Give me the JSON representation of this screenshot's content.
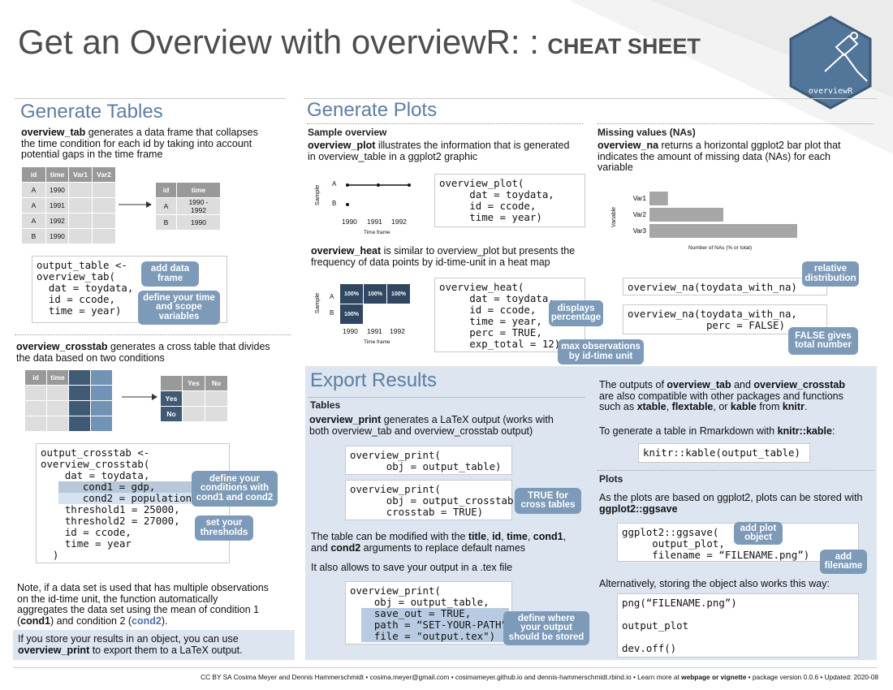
{
  "title": {
    "main": "Get an Overview with overviewR: :",
    "suffix": "CHEAT SHEET"
  },
  "logo": {
    "text": "overviewR"
  },
  "generate_tables": {
    "heading": "Generate Tables",
    "tab_fn": "overview_tab",
    "tab_desc": " generates a data frame that collapses the time condition for each id by taking into account potential gaps in the time frame",
    "tab_table_in": {
      "headers": [
        "id",
        "time",
        "Var1",
        "Var2"
      ],
      "rows": [
        [
          "A",
          "1990"
        ],
        [
          "A",
          "1991"
        ],
        [
          "A",
          "1992"
        ],
        [
          "B",
          "1990"
        ]
      ]
    },
    "tab_table_out": {
      "headers": [
        "id",
        "time"
      ],
      "rows": [
        [
          "A",
          "1990 - 1992"
        ],
        [
          "B",
          "1990"
        ]
      ]
    },
    "tab_code": [
      "output_table <-",
      "overview_tab(",
      "  dat = toydata,",
      "  id = ccode,",
      "  time = year)"
    ],
    "tag_add_data_frame": "add data frame",
    "tag_define_time": "define your time and scope variables",
    "crosstab_fn": "overview_crosstab",
    "crosstab_desc": " generates a cross table that divides the data based on two conditions",
    "crosstab_in_headers": [
      "id",
      "time"
    ],
    "crosstab_out": {
      "col_headers": [
        "Yes",
        "No"
      ],
      "row_headers": [
        "Yes",
        "No"
      ]
    },
    "crosstab_code": [
      "output_crosstab <-",
      "overview_crosstab(",
      "    dat = toydata,",
      "    cond1 = gdp,",
      "    cond2 = population,",
      "    threshold1 = 25000,",
      "    threshold2 = 27000,",
      "    id = ccode,",
      "    time = year",
      "  )"
    ],
    "tag_conditions": "define your conditions with cond1 and cond2",
    "tag_thresholds": "set your thresholds",
    "note_prefix": "Note, if a data set is used that has multiple observations on the id-time unit, the function automatically aggregates the data set using the mean of condition 1 (",
    "note_cond1": "cond1",
    "note_mid": ") and condition 2 (",
    "note_cond2": "cond2",
    "note_end": ").",
    "store_prefix": "If you store your results in an object, you can use ",
    "store_fn": "overview_print",
    "store_suffix": " to export them to a LaTeX output."
  },
  "generate_plots": {
    "heading": "Generate Plots",
    "sample_title": "Sample overview",
    "plot_fn": "overview_plot",
    "plot_desc": " illustrates the information that is generated in overview_table in a ggplot2 graphic",
    "plot_code": [
      "overview_plot(",
      "     dat = toydata,",
      "     id = ccode,",
      "     time = year)"
    ],
    "plot_axis": {
      "ylabel": "Sample",
      "xlabel": "Time frame",
      "x_ticks": [
        "1990",
        "1991",
        "1992"
      ],
      "y_ticks": [
        "A",
        "B"
      ]
    },
    "heat_fn": "overview_heat",
    "heat_desc": " is similar to overview_plot but presents the frequency of data points by id-time-unit in a heat map",
    "heat_code": [
      "overview_heat(",
      "     dat = toydata,",
      "     id = ccode,",
      "     time = year,",
      "     perc = TRUE,",
      "     exp_total = 12)"
    ],
    "heat_axis": {
      "ylabel": "Sample",
      "xlabel": "Time frame",
      "x_ticks": [
        "1990",
        "1991",
        "1992"
      ],
      "y_ticks": [
        "A",
        "B"
      ],
      "cells": [
        "100%",
        "100%",
        "100%",
        "100%"
      ]
    },
    "tag_displays_percentage": "displays percentage",
    "tag_max_obs": "max observations by id-time unit",
    "na_title": "Missing values (NAs)",
    "na_fn": "overview_na",
    "na_desc": " returns a horizontal ggplot2 bar plot that indicates the amount of missing data (NAs) for each variable",
    "na_code1": "overview_na(toydata_with_na)",
    "na_code2": [
      "overview_na(toydata_with_na,",
      "             perc = FALSE)"
    ],
    "tag_relative": "relative distribution",
    "tag_false_total": "FALSE gives total number"
  },
  "chart_data": {
    "type": "bar",
    "orientation": "horizontal",
    "categories": [
      "Var1",
      "Var2",
      "Var3"
    ],
    "values": [
      1,
      4,
      8
    ],
    "xlabel": "Number of NAs (% or total)",
    "ylabel": "Variable",
    "xlim": [
      0,
      8
    ],
    "color": "#a6a6a6"
  },
  "export": {
    "heading": "Export Results",
    "tables_title": "Tables",
    "print_fn": "overview_print",
    "print_desc": " generates a LaTeX output (works with both overview_tab and overview_crosstab output)",
    "print_code1": [
      "overview_print(",
      "      obj = output_table)"
    ],
    "print_code2": [
      "overview_print(",
      "      obj = output_crosstab,",
      "      crosstab = TRUE)"
    ],
    "tag_true_crosstab": "TRUE for cross tables",
    "modify_text": [
      "The table can be modified with the ",
      "title",
      ", ",
      "id",
      ", ",
      "time",
      ", ",
      "cond1",
      ", and ",
      "cond2",
      " arguments to replace default names"
    ],
    "save_text": "It also allows to save your output in a .tex file",
    "print_code3_head": [
      "overview_print(",
      "    obj = output_table,"
    ],
    "print_code3_hl": [
      "    save_out = TRUE,",
      "    path = “SET-YOUR-PATH”,",
      "    file = \"output.tex\")"
    ],
    "tag_define_where": "define where your output should be stored",
    "compat_text": [
      "The outputs of ",
      "overview_tab",
      " and ",
      "overview_crosstab",
      " are also compatible with other packages and functions such as ",
      "xtable",
      ", ",
      "flextable",
      ", or ",
      "kable",
      " from ",
      "knitr",
      "."
    ],
    "rmd_text": [
      "To generate a table in Rmarkdown with ",
      "knitr::kable",
      ":"
    ],
    "kable_code": "knitr::kable(output_table)",
    "plots_title": "Plots",
    "plots_text": [
      "As the plots are based on ggplot2, plots can be stored with ",
      "ggplot2::ggsave"
    ],
    "ggsave_code": [
      "ggplot2::ggsave(",
      "     output_plot,",
      "     filename = “FILENAME.png”)"
    ],
    "tag_add_plot": "add plot object",
    "tag_add_filename": "add filename",
    "alt_text": "Alternatively, storing the object also works this way:",
    "png_code": [
      "png(“FILENAME.png”)",
      "",
      "output_plot",
      "",
      "dev.off()"
    ]
  },
  "footer": {
    "part1": "CC BY SA Cosima Meyer and Dennis Hammerschmidt •  cosima.meyer@gmail.com • cosimameyer.github.io and dennis-hammerschmidt.rbind.io •  Learn more at ",
    "link": "webpage or vignette",
    "part2": "   • package version  0.0.6 •  Updated: 2020-08"
  },
  "colors": {
    "accent": "#5c7ea1",
    "tag": "#7d9bb8",
    "panel": "#dce5f0",
    "dark_cell": "#415a74",
    "mid_cell": "#7193b5"
  }
}
